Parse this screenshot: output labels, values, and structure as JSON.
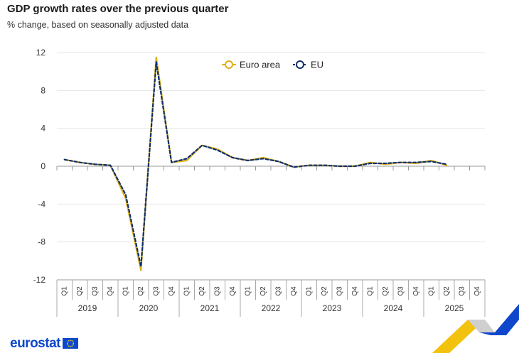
{
  "title": "GDP growth rates over the previous quarter",
  "subtitle": "% change, based on seasonally adjusted data",
  "brand": "eurostat",
  "colors": {
    "euro_area": "#e0b013",
    "eu": "#0e2f6b",
    "axis": "#bbbbbb",
    "grid": "#e6e6e6",
    "accent_blue": "#0e47cb",
    "accent_yellow": "#f2c20f"
  },
  "chart_data": {
    "type": "line",
    "title": "GDP growth rates over the previous quarter",
    "subtitle": "% change, based on seasonally adjusted data",
    "xlabel": "",
    "ylabel": "",
    "ylim": [
      -12,
      12
    ],
    "yticks": [
      12,
      8,
      4,
      0,
      -4,
      -8,
      -12
    ],
    "grid": true,
    "legend": "top-center",
    "years": [
      "2019",
      "2020",
      "2021",
      "2022",
      "2023",
      "2024",
      "2025"
    ],
    "quarters": [
      "Q1",
      "Q2",
      "Q3",
      "Q4"
    ],
    "x": [
      "2019-Q1",
      "2019-Q2",
      "2019-Q3",
      "2019-Q4",
      "2020-Q1",
      "2020-Q2",
      "2020-Q3",
      "2020-Q4",
      "2021-Q1",
      "2021-Q2",
      "2021-Q3",
      "2021-Q4",
      "2022-Q1",
      "2022-Q2",
      "2022-Q3",
      "2022-Q4",
      "2023-Q1",
      "2023-Q2",
      "2023-Q3",
      "2023-Q4",
      "2024-Q1",
      "2024-Q2",
      "2024-Q3",
      "2024-Q4",
      "2025-Q1",
      "2025-Q2",
      "2025-Q3",
      "2025-Q4"
    ],
    "series": [
      {
        "name": "Euro area",
        "color": "#e0b013",
        "values": [
          0.7,
          0.4,
          0.2,
          0.1,
          -3.4,
          -11.0,
          11.5,
          0.4,
          0.6,
          2.2,
          1.8,
          0.9,
          0.6,
          0.9,
          0.5,
          -0.1,
          0.1,
          0.1,
          0.0,
          0.0,
          0.4,
          0.2,
          0.4,
          0.3,
          0.6,
          0.1,
          null,
          null
        ]
      },
      {
        "name": "EU",
        "color": "#0e2f6b",
        "values": [
          0.7,
          0.4,
          0.2,
          0.1,
          -3.0,
          -10.6,
          11.0,
          0.4,
          0.8,
          2.2,
          1.7,
          0.9,
          0.6,
          0.8,
          0.5,
          -0.1,
          0.1,
          0.1,
          0.0,
          0.0,
          0.3,
          0.3,
          0.4,
          0.4,
          0.5,
          0.2,
          null,
          null
        ]
      }
    ]
  }
}
